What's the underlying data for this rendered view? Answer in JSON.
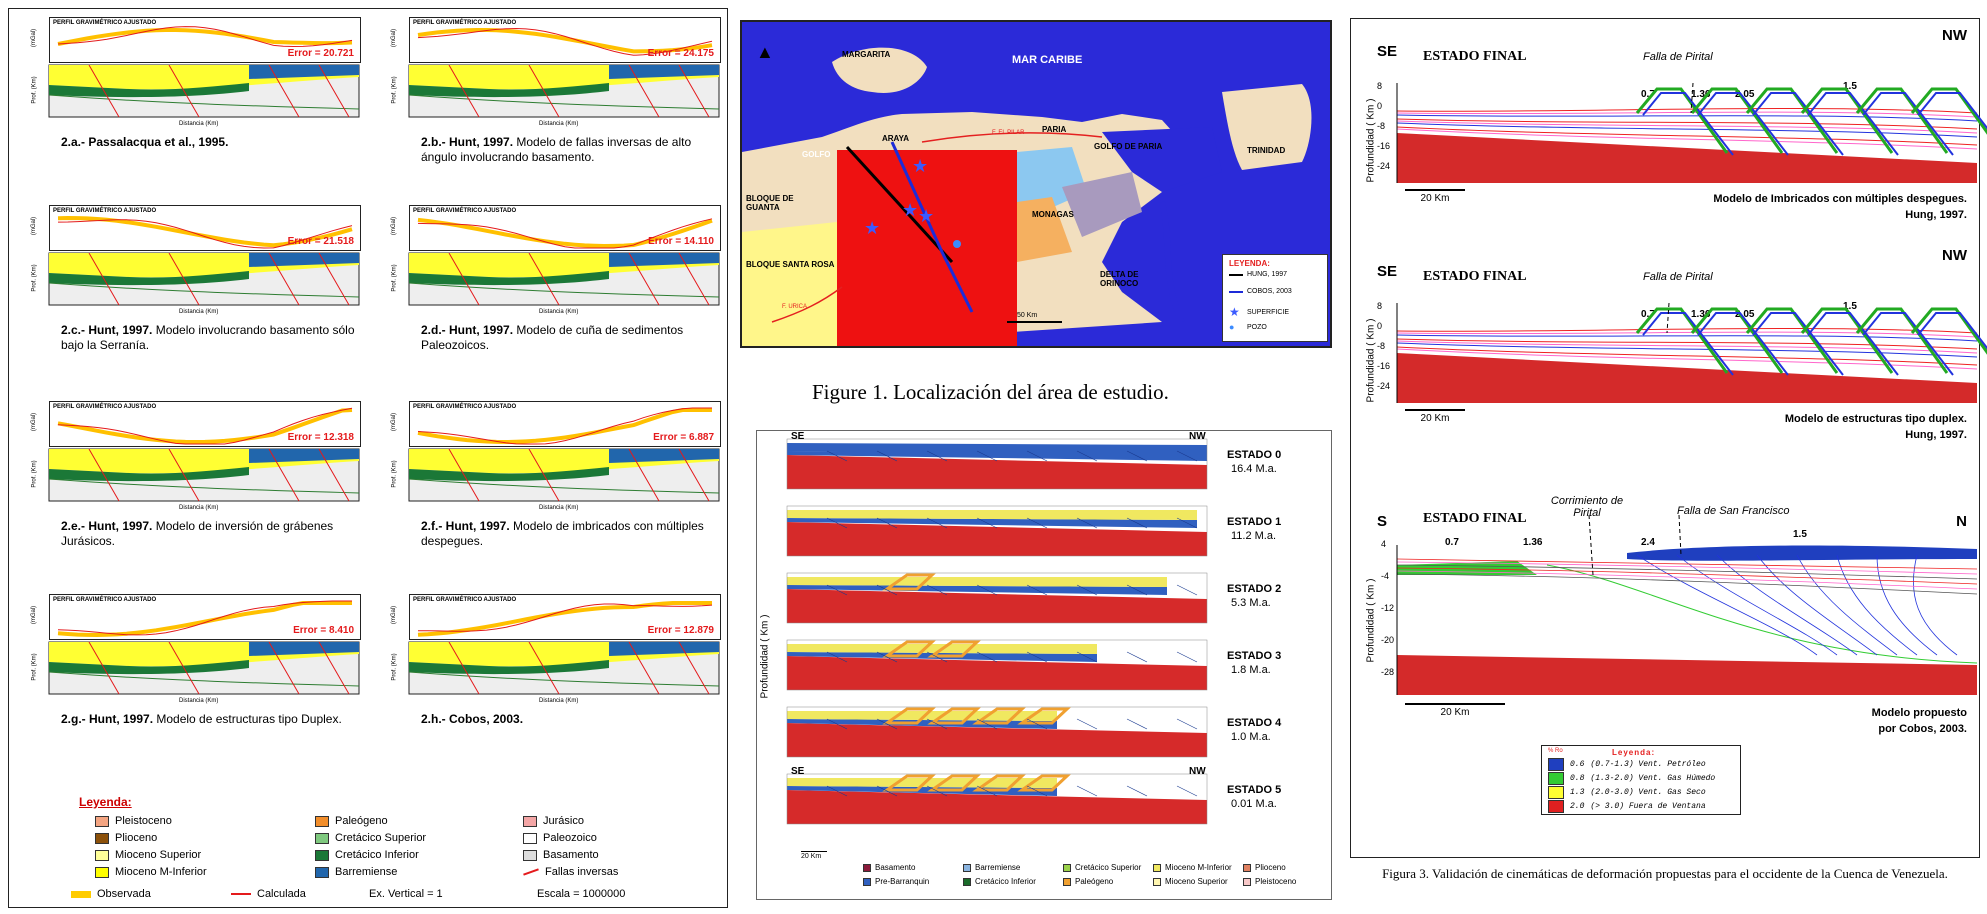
{
  "fig2": {
    "profile_title": "PERFIL GRAVIMÉTRICO AJUSTADO",
    "ylabel_top": "(mGal)",
    "ylabel_bottom": "Prof. (Km)",
    "xlabel": "Distancia (Km)",
    "panels": [
      {
        "error": "Error = 20.721",
        "caption_bold": "2.a.- Passalacqua et al., 1995.",
        "caption_rest": ""
      },
      {
        "error": "Error = 24.175",
        "caption_bold": "2.b.- Hunt, 1997.",
        "caption_rest": " Modelo de fallas inversas de alto ángulo involucrando basamento."
      },
      {
        "error": "Error = 21.518",
        "caption_bold": "2.c.- Hunt, 1997.",
        "caption_rest": " Modelo involucrando basamento sólo bajo la Serranía."
      },
      {
        "error": "Error = 14.110",
        "caption_bold": "2.d.- Hunt, 1997.",
        "caption_rest": " Modelo de cuña de sedimentos Paleozoicos."
      },
      {
        "error": "Error = 12.318",
        "caption_bold": "2.e.- Hunt, 1997.",
        "caption_rest": " Modelo de inversión de grábenes Jurásicos."
      },
      {
        "error": "Error = 6.887",
        "caption_bold": "2.f.- Hunt, 1997.",
        "caption_rest": " Modelo de imbricados con múltiples despegues."
      },
      {
        "error": "Error = 8.410",
        "caption_bold": "2.g.- Hunt, 1997.",
        "caption_rest": " Modelo de estructuras tipo Duplex."
      },
      {
        "error": "Error = 12.879",
        "caption_bold": "2.h.- Cobos, 2003.",
        "caption_rest": ""
      }
    ],
    "legend_title": "Leyenda:",
    "legend": [
      {
        "label": "Pleistoceno",
        "color": "#f4a582"
      },
      {
        "label": "Plioceno",
        "color": "#8c510a"
      },
      {
        "label": "Mioceno Superior",
        "color": "#ffff99"
      },
      {
        "label": "Mioceno M-Inferior",
        "color": "#ffff00"
      },
      {
        "label": "Paleógeno",
        "color": "#f28e2b"
      },
      {
        "label": "Cretácico Superior",
        "color": "#7fc97f"
      },
      {
        "label": "Cretácico Inferior",
        "color": "#1b7837"
      },
      {
        "label": "Barremiense",
        "color": "#2166ac"
      },
      {
        "label": "Jurásico",
        "color": "#f4a6a6"
      },
      {
        "label": "Paleozoico",
        "color": "#ffffff"
      },
      {
        "label": "Basamento",
        "color": "#dddddd"
      },
      {
        "label": "Fallas inversas",
        "color": "#e41a1c"
      }
    ],
    "observada": "Observada",
    "calculada": "Calculada",
    "ex_vertical": "Ex. Vertical = 1",
    "escala": "Escala = 1000000"
  },
  "fig1": {
    "caption": "Figure 1. Localización del área de estudio.",
    "labels": {
      "margarita": "MARGARITA",
      "mar_caribe": "MAR CARIBE",
      "araya": "ARAYA",
      "paria": "PARIA",
      "golfo": "GOLFO",
      "golfo_paria": "GOLFO DE PARIA",
      "trinidad": "TRINIDAD",
      "bloque_guanta": "BLOQUE DE GUANTA",
      "bloque_santa_rosa": "BLOQUE SANTA ROSA",
      "monagas": "MONAGAS",
      "delta": "DELTA DE ORINOCO",
      "fault_pilar": "F. EL PILAR",
      "fault_urica": "F. URICA",
      "scale": "50 Km"
    },
    "legend_title": "LEYENDA:",
    "legend": [
      "HUNG, 1997",
      "COBOS, 2003",
      "SUPERFICIE",
      "POZO"
    ]
  },
  "fig_states": {
    "ylabel": "Profundidad ( Km )",
    "se": "SE",
    "nw": "NW",
    "scale": "20 Km",
    "states": [
      {
        "name": "ESTADO 0",
        "age": "16.4 M.a."
      },
      {
        "name": "ESTADO 1",
        "age": "11.2 M.a."
      },
      {
        "name": "ESTADO 2",
        "age": "5.3 M.a."
      },
      {
        "name": "ESTADO 3",
        "age": "1.8 M.a."
      },
      {
        "name": "ESTADO 4",
        "age": "1.0 M.a."
      },
      {
        "name": "ESTADO 5",
        "age": "0.01 M.a."
      }
    ],
    "legend": [
      {
        "label": "Basamento",
        "color": "#8b1a3a"
      },
      {
        "label": "Pre-Barranquin",
        "color": "#3060c0"
      },
      {
        "label": "Barremiense",
        "color": "#8ab4e0"
      },
      {
        "label": "Cretácico Inferior",
        "color": "#1a6b2a"
      },
      {
        "label": "Cretácico Superior",
        "color": "#9bd24a"
      },
      {
        "label": "Paleógeno",
        "color": "#f0a030"
      },
      {
        "label": "Mioceno M-Inferior",
        "color": "#f0e860"
      },
      {
        "label": "Mioceno Superior",
        "color": "#fff6b0"
      },
      {
        "label": "Plioceno",
        "color": "#e08060"
      },
      {
        "label": "Pleistoceno",
        "color": "#f8c8c8"
      }
    ]
  },
  "fig3": {
    "ylabel": "Profundidad ( Km )",
    "scale": "20 Km",
    "sections": [
      {
        "left": "SE",
        "right": "NW",
        "title": "ESTADO FINAL",
        "fault": "Falla de Pirital",
        "values": [
          "0.7",
          "1.36",
          "2.05",
          "1.5"
        ],
        "desc1": "Modelo de Imbricados con múltiples despegues.",
        "desc2": "Hung, 1997.",
        "yticks": [
          "8",
          "0",
          "-8",
          "-16",
          "-24"
        ]
      },
      {
        "left": "SE",
        "right": "NW",
        "title": "ESTADO FINAL",
        "fault": "Falla de Pirital",
        "values": [
          "0.7",
          "1.36",
          "2.05",
          "1.5"
        ],
        "desc1": "Modelo de estructuras tipo duplex.",
        "desc2": "Hung, 1997.",
        "yticks": [
          "8",
          "0",
          "-8",
          "-16",
          "-24"
        ]
      },
      {
        "left": "S",
        "right": "N",
        "title": "ESTADO FINAL",
        "fault": "Corrimiento de Pirital",
        "fault2": "Falla de San Francisco",
        "values": [
          "0.7",
          "1.36",
          "2.4",
          "1.5"
        ],
        "desc1": "Modelo propuesto",
        "desc2": "por Cobos, 2003.",
        "yticks": [
          "4",
          "-4",
          "-12",
          "-20",
          "-28"
        ]
      }
    ],
    "legend_title": "Leyenda:",
    "legend_header": "% Ro",
    "legend": [
      {
        "ro": "0.6",
        "text": "(0.7-1.3) Vent. Petróleo",
        "color": "#1f3fbf"
      },
      {
        "ro": "0.8",
        "text": "(1.3-2.0) Vent. Gas Húmedo",
        "color": "#33cc33"
      },
      {
        "ro": "1.3",
        "text": "(2.0-3.0) Vent. Gas Seco",
        "color": "#ffff33"
      },
      {
        "ro": "2.0",
        "text": "(> 3.0) Fuera de Ventana",
        "color": "#e02020"
      }
    ],
    "caption": "Figura 3. Validación de cinemáticas de deformación propuestas para el occidente de la Cuenca de Venezuela."
  }
}
